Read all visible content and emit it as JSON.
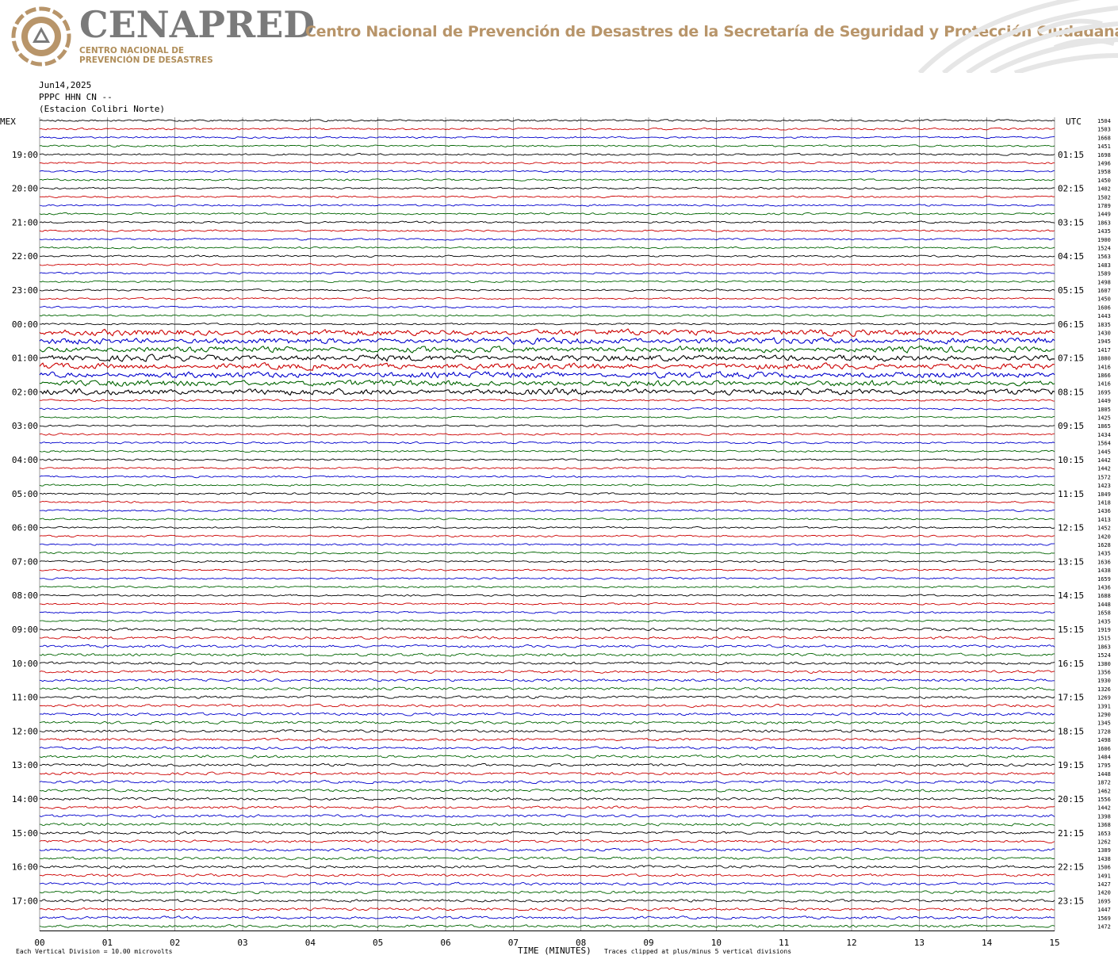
{
  "header": {
    "logo_word": "CENAPRED",
    "logo_sub_line1": "CENTRO NACIONAL DE",
    "logo_sub_line2": "PREVENCIÓN DE DESASTRES",
    "agency_title": "Centro Nacional de Prevención de Desastres de la Secretaría de Seguridad y Protección Ciudadana",
    "brand_gold": "#b8956a",
    "brand_gray": "#7a7a7a"
  },
  "station": {
    "date": "Jun14,2025",
    "channel": "PPPC HHN CN --",
    "name": "(Estacion Colibri Norte)"
  },
  "chart_data": {
    "type": "line",
    "subtype": "helicorder",
    "left_axis_label": "MEX",
    "right_axis_label": "UTC",
    "left_hour_labels": [
      "19:00",
      "20:00",
      "21:00",
      "22:00",
      "23:00",
      "00:00",
      "01:00",
      "02:00",
      "03:00",
      "04:00",
      "05:00",
      "06:00",
      "07:00",
      "08:00",
      "09:00",
      "10:00",
      "11:00",
      "12:00",
      "13:00",
      "14:00",
      "15:00",
      "16:00",
      "17:00"
    ],
    "right_hour_labels": [
      "01:15",
      "02:15",
      "03:15",
      "04:15",
      "05:15",
      "06:15",
      "07:15",
      "08:15",
      "09:15",
      "10:15",
      "11:15",
      "12:15",
      "13:15",
      "14:15",
      "15:15",
      "16:15",
      "17:15",
      "18:15",
      "19:15",
      "20:15",
      "21:15",
      "22:15",
      "23:15"
    ],
    "x_ticks": [
      "00",
      "01",
      "02",
      "03",
      "04",
      "05",
      "06",
      "07",
      "08",
      "09",
      "10",
      "11",
      "12",
      "13",
      "14",
      "15"
    ],
    "xlim": [
      0,
      15
    ],
    "xlabel": "TIME (MINUTES)",
    "trace_minutes": 15,
    "trace_count": 96,
    "trace_colors": [
      "#000000",
      "#cc0000",
      "#0000cc",
      "#006400"
    ],
    "trace_values": [
      "1504",
      "1503",
      "1668",
      "1451",
      "1698",
      "1496",
      "1958",
      "1450",
      "1402",
      "1502",
      "1789",
      "1449",
      "1863",
      "1435",
      "1900",
      "1524",
      "1563",
      "1483",
      "1589",
      "1498",
      "1607",
      "1450",
      "1606",
      "1443",
      "1835",
      "1430",
      "1945",
      "1417",
      "1880",
      "1416",
      "1866",
      "1416",
      "1695",
      "1449",
      "1805",
      "1425",
      "1865",
      "1434",
      "1564",
      "1445",
      "1442",
      "1442",
      "1572",
      "1423",
      "1849",
      "1418",
      "1436",
      "1413",
      "1452",
      "1420",
      "1628",
      "1435",
      "1636",
      "1438",
      "1659",
      "1436",
      "1688",
      "1448",
      "1658",
      "1435",
      "1919",
      "1515",
      "1863",
      "1524",
      "1380",
      "1356",
      "1930",
      "1326",
      "1269",
      "1391",
      "1290",
      "1345",
      "1728",
      "1498",
      "1606",
      "1484",
      "1795",
      "1448",
      "1872",
      "1462",
      "1556",
      "1442",
      "1398",
      "1368",
      "1653",
      "1262",
      "1389",
      "1438",
      "1506",
      "1491",
      "1427",
      "1420",
      "1695",
      "1447",
      "1569",
      "1472"
    ],
    "footer_left": "Each Vertical Division =   10.00 microvolts",
    "footer_right": "Traces clipped at plus/minus 5 vertical divisions",
    "grid": true,
    "grid_color": "#555555"
  }
}
